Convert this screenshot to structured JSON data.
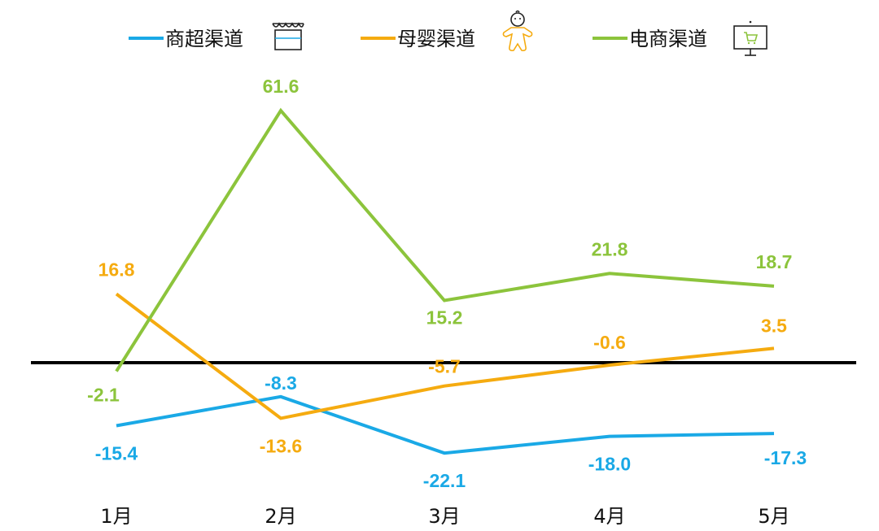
{
  "chart_data": {
    "type": "line",
    "categories": [
      "1月",
      "2月",
      "3月",
      "4月",
      "5月"
    ],
    "ylim": [
      -30,
      72
    ],
    "grid": false,
    "legend_placement": "top",
    "zero_line": true,
    "series": [
      {
        "name": "商超渠道",
        "icon": "store-icon",
        "color": "#1aa9e6",
        "values": [
          -15.4,
          -8.3,
          -22.1,
          -18.0,
          -17.3
        ]
      },
      {
        "name": "母婴渠道",
        "icon": "baby-icon",
        "color": "#f5ab10",
        "values": [
          16.8,
          -13.6,
          -5.7,
          -0.6,
          3.5
        ]
      },
      {
        "name": "电商渠道",
        "icon": "ecommerce-screen-icon",
        "color": "#8cc43c",
        "values": [
          -2.1,
          61.6,
          15.2,
          21.8,
          18.7
        ]
      }
    ]
  }
}
